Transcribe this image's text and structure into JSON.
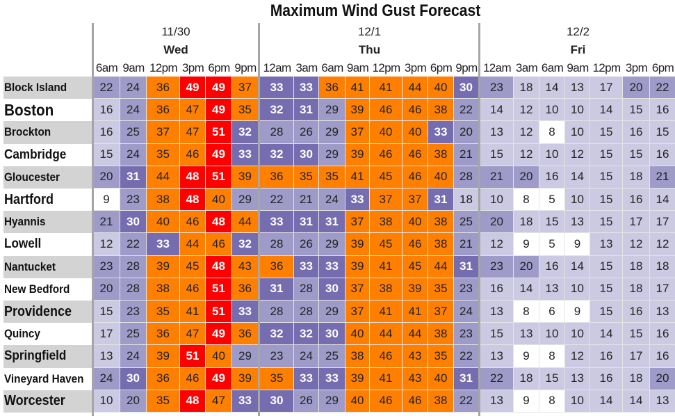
{
  "chart_data": {
    "type": "heatmap",
    "title": "Maximum Wind Gust Forecast",
    "days": [
      {
        "date": "11/30",
        "day": "Wed",
        "times": [
          "6am",
          "9am",
          "12pm",
          "3pm",
          "6pm",
          "9pm"
        ]
      },
      {
        "date": "12/1",
        "day": "Thu",
        "times": [
          "12am",
          "3am",
          "6am",
          "9am",
          "12pm",
          "3pm",
          "6pm",
          "9pm"
        ]
      },
      {
        "date": "12/2",
        "day": "Fri",
        "times": [
          "12am",
          "3am",
          "6am",
          "9am",
          "12pm",
          "3pm",
          "6pm"
        ]
      }
    ],
    "rows": [
      {
        "name": "Block Island",
        "values": [
          22,
          24,
          36,
          49,
          49,
          37,
          33,
          33,
          36,
          41,
          41,
          44,
          40,
          30,
          23,
          18,
          14,
          13,
          17,
          20,
          22
        ]
      },
      {
        "name": "Boston",
        "values": [
          16,
          24,
          36,
          47,
          49,
          35,
          32,
          31,
          29,
          39,
          46,
          46,
          38,
          22,
          14,
          12,
          10,
          10,
          14,
          15,
          16
        ]
      },
      {
        "name": "Brockton",
        "values": [
          16,
          25,
          37,
          47,
          51,
          32,
          28,
          26,
          29,
          37,
          40,
          40,
          33,
          20,
          13,
          12,
          8,
          10,
          15,
          16,
          15
        ]
      },
      {
        "name": "Cambridge",
        "values": [
          15,
          24,
          35,
          46,
          49,
          33,
          32,
          30,
          29,
          39,
          46,
          46,
          38,
          21,
          15,
          12,
          10,
          12,
          15,
          15,
          16
        ]
      },
      {
        "name": "Gloucester",
        "values": [
          20,
          31,
          44,
          48,
          51,
          39,
          36,
          35,
          35,
          41,
          45,
          46,
          40,
          28,
          21,
          20,
          16,
          14,
          15,
          18,
          21
        ]
      },
      {
        "name": "Hartford",
        "values": [
          9,
          23,
          38,
          48,
          40,
          29,
          22,
          21,
          24,
          33,
          37,
          37,
          31,
          18,
          10,
          8,
          5,
          10,
          15,
          16,
          14
        ]
      },
      {
        "name": "Hyannis",
        "values": [
          21,
          30,
          40,
          46,
          48,
          44,
          33,
          31,
          31,
          37,
          38,
          40,
          38,
          25,
          20,
          18,
          15,
          13,
          15,
          17,
          17
        ]
      },
      {
        "name": "Lowell",
        "values": [
          12,
          22,
          33,
          44,
          46,
          32,
          28,
          26,
          29,
          39,
          45,
          46,
          38,
          21,
          12,
          9,
          5,
          9,
          13,
          12,
          12
        ]
      },
      {
        "name": "Nantucket",
        "values": [
          23,
          28,
          39,
          45,
          48,
          43,
          36,
          33,
          33,
          39,
          41,
          45,
          44,
          31,
          23,
          20,
          16,
          14,
          15,
          18,
          18
        ]
      },
      {
        "name": "New Bedford",
        "values": [
          20,
          28,
          38,
          46,
          51,
          36,
          31,
          28,
          30,
          37,
          38,
          39,
          35,
          23,
          16,
          14,
          13,
          10,
          15,
          18,
          17
        ]
      },
      {
        "name": "Providence",
        "values": [
          15,
          23,
          35,
          41,
          51,
          33,
          28,
          28,
          29,
          37,
          41,
          41,
          37,
          24,
          13,
          8,
          6,
          9,
          15,
          16,
          13
        ]
      },
      {
        "name": "Quincy",
        "values": [
          17,
          25,
          36,
          47,
          49,
          36,
          32,
          32,
          30,
          40,
          44,
          44,
          38,
          23,
          15,
          13,
          10,
          10,
          14,
          15,
          16
        ]
      },
      {
        "name": "Springfield",
        "values": [
          13,
          24,
          39,
          51,
          40,
          29,
          23,
          24,
          25,
          38,
          46,
          43,
          35,
          22,
          13,
          9,
          8,
          12,
          16,
          17,
          16
        ]
      },
      {
        "name": "Vineyard Haven",
        "values": [
          24,
          30,
          36,
          46,
          49,
          39,
          35,
          33,
          33,
          39,
          41,
          43,
          40,
          31,
          22,
          18,
          15,
          13,
          16,
          18,
          20
        ]
      },
      {
        "name": "Worcester",
        "values": [
          10,
          20,
          35,
          48,
          47,
          33,
          30,
          26,
          29,
          40,
          46,
          46,
          38,
          22,
          13,
          9,
          8,
          10,
          14,
          14,
          13
        ]
      }
    ],
    "color_scale": [
      {
        "min": 0,
        "max": 9,
        "color": "#ffffff"
      },
      {
        "min": 10,
        "max": 19,
        "color": "#cccae2"
      },
      {
        "min": 20,
        "max": 29,
        "color": "#9e9bc9"
      },
      {
        "min": 30,
        "max": 34,
        "color": "#766cb0"
      },
      {
        "min": 35,
        "max": 47,
        "color": "#ff8000"
      },
      {
        "min": 48,
        "max": 99,
        "color": "#ff0000"
      }
    ],
    "label_band_color": "#d3d3d3"
  }
}
